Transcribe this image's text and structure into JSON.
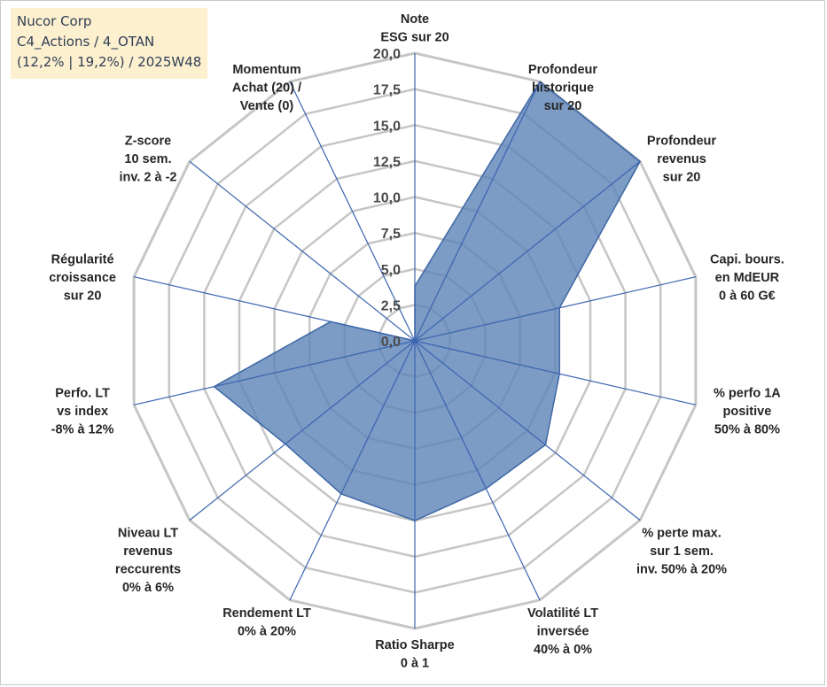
{
  "header": {
    "company": "Nucor Corp",
    "portfolio": "C4_Actions / 4_OTAN",
    "stats": "(12,2% | 19,2%) / 2025W48"
  },
  "chart_data": {
    "type": "radar",
    "title": "Nucor Corp",
    "rmin": 0,
    "rmax": 20,
    "ticks": [
      "0,0",
      "2,5",
      "5,0",
      "7,5",
      "10,0",
      "12,5",
      "15,0",
      "17,5",
      "20,0"
    ],
    "axes": [
      {
        "label": [
          "Note",
          "ESG sur 20"
        ],
        "value": 3.8
      },
      {
        "label": [
          "Profondeur",
          "historique",
          "sur 20"
        ],
        "value": 20
      },
      {
        "label": [
          "Profondeur",
          "revenus",
          "sur 20"
        ],
        "value": 20
      },
      {
        "label": [
          "Capi. bours.",
          "en MdEUR",
          "0 à 60 G€"
        ],
        "value": 10.3
      },
      {
        "label": [
          "% perfo 1A",
          "positive",
          "50% à 80%"
        ],
        "value": 10.3
      },
      {
        "label": [
          "% perte max.",
          "sur 1 sem.",
          "inv. 50% à 20%"
        ],
        "value": 11.6
      },
      {
        "label": [
          "Volatilité LT",
          "inversée",
          "40% à 0%"
        ],
        "value": 11.4
      },
      {
        "label": [
          "Ratio Sharpe",
          "0 à 1"
        ],
        "value": 12.5
      },
      {
        "label": [
          "Rendement LT",
          "0% à 20%"
        ],
        "value": 11.8
      },
      {
        "label": [
          "Niveau LT",
          "revenus",
          "reccurents",
          "0% à 6%"
        ],
        "value": 11.5
      },
      {
        "label": [
          "Perfo. LT",
          "vs index",
          "-8% à 12%"
        ],
        "value": 14.3
      },
      {
        "label": [
          "Régularité",
          "croissance",
          "sur 20"
        ],
        "value": 6.0
      },
      {
        "label": [
          "Z-score",
          "10 sem.",
          "inv. 2 à -2"
        ],
        "value": 0
      },
      {
        "label": [
          "Momentum",
          "Achat (20) /",
          "Vente (0)"
        ],
        "value": 0
      }
    ],
    "colors": {
      "fill": "#5b82b6",
      "fill_opacity": 0.8,
      "stroke": "#3e68a5",
      "grid": "#c6c6c6",
      "spoke": "#3b64b0"
    }
  }
}
